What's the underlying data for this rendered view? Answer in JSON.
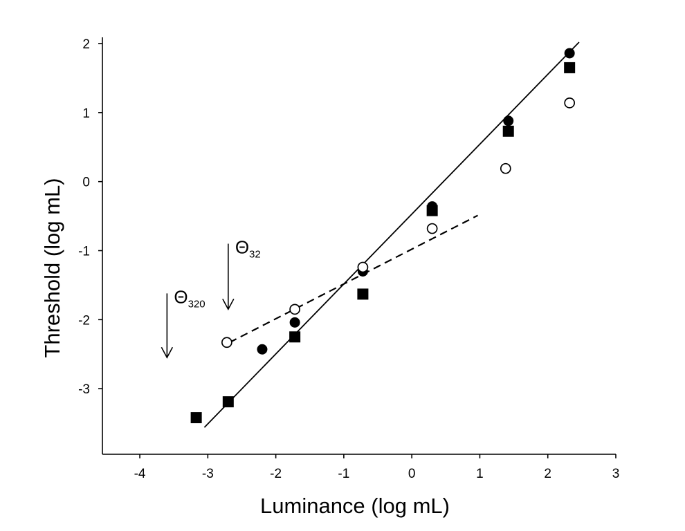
{
  "chart_data": {
    "type": "scatter",
    "xlabel": "Luminance (log mL)",
    "ylabel": "Threshold (log mL)",
    "xlim": [
      -4.55,
      3.0
    ],
    "ylim": [
      -3.95,
      2.05
    ],
    "xticks": [
      -4,
      -3,
      -2,
      -1,
      0,
      1,
      2,
      3
    ],
    "yticks": [
      -3,
      -2,
      -1,
      0,
      1,
      2
    ],
    "xtick_labels": [
      "-4",
      "-3",
      "-2",
      "-1",
      "0",
      "1",
      "2",
      "3"
    ],
    "ytick_labels": [
      "-3",
      "-2",
      "-1",
      "0",
      "1",
      "2"
    ],
    "series": [
      {
        "name": "filled circles",
        "marker": "filled-circle",
        "points": [
          [
            -2.2,
            -2.43
          ],
          [
            -1.72,
            -2.04
          ],
          [
            -0.72,
            -1.3
          ],
          [
            0.3,
            -0.36
          ],
          [
            1.42,
            0.88
          ],
          [
            2.32,
            1.86
          ]
        ]
      },
      {
        "name": "filled squares",
        "marker": "filled-square",
        "points": [
          [
            -3.17,
            -3.42
          ],
          [
            -2.7,
            -3.19
          ],
          [
            -1.72,
            -2.25
          ],
          [
            -0.72,
            -1.63
          ],
          [
            0.3,
            -0.42
          ],
          [
            1.42,
            0.73
          ],
          [
            2.32,
            1.65
          ]
        ]
      },
      {
        "name": "open circles",
        "marker": "open-circle",
        "points": [
          [
            -2.72,
            -2.33
          ],
          [
            -1.72,
            -1.85
          ],
          [
            -0.72,
            -1.24
          ],
          [
            0.3,
            -0.68
          ],
          [
            1.38,
            0.19
          ],
          [
            2.32,
            1.14
          ]
        ]
      }
    ],
    "fit_lines": [
      {
        "name": "solid fit",
        "style": "solid",
        "points": [
          [
            -3.05,
            -3.56
          ],
          [
            2.46,
            2.02
          ]
        ]
      },
      {
        "name": "dashed fit",
        "style": "dashed",
        "points": [
          [
            -2.68,
            -2.33
          ],
          [
            0.97,
            -0.49
          ]
        ]
      }
    ],
    "annotations": [
      {
        "symbol": "Θ",
        "subscript": "32",
        "arrow_x": -2.7,
        "arrow_from_y": -0.9,
        "arrow_to_y": -1.85
      },
      {
        "symbol": "Θ",
        "subscript": "320",
        "arrow_x": -3.6,
        "arrow_from_y": -1.62,
        "arrow_to_y": -2.55
      }
    ]
  }
}
